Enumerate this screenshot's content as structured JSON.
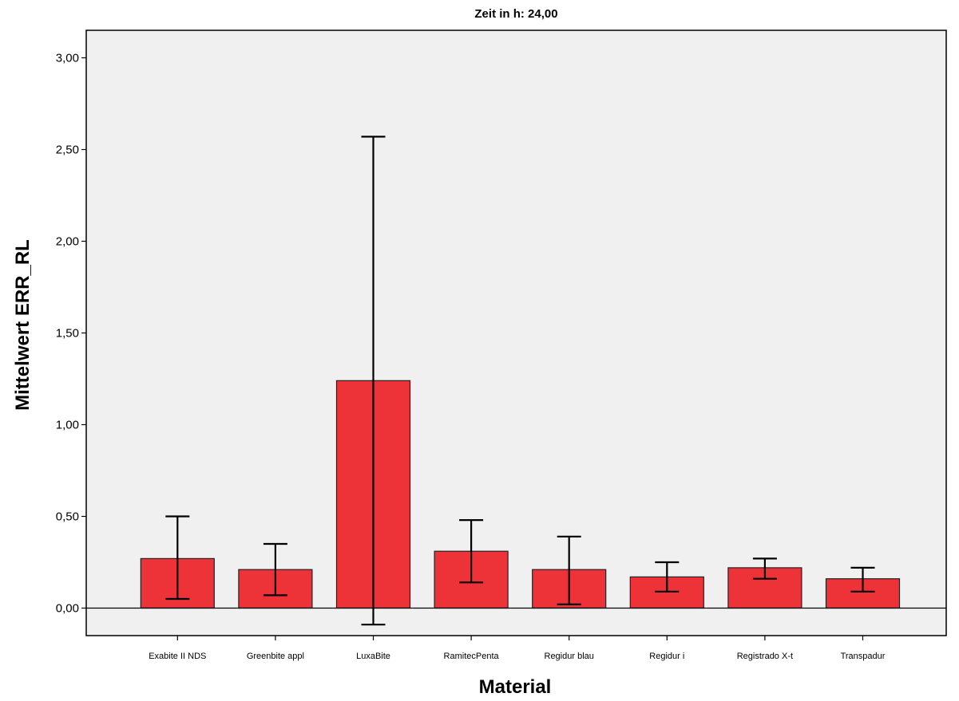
{
  "chart_data": {
    "type": "bar",
    "title": "Zeit in h: 24,00",
    "xlabel": "Material",
    "ylabel": "Mittelwert ERR_RL",
    "ylim": [
      -0.15,
      3.15
    ],
    "yticks": [
      0,
      0.5,
      1,
      1.5,
      2,
      2.5,
      3
    ],
    "ytick_labels": [
      "0,00",
      "0,50",
      "1,00",
      "1,50",
      "2,00",
      "2,50",
      "3,00"
    ],
    "grid": false,
    "bar_color": "#ee3338",
    "background_color": "#f0f0f0",
    "categories": [
      "Exabite II NDS",
      "Greenbite appl",
      "LuxaBite",
      "RamitecPenta",
      "Regidur blau",
      "Regidur i",
      "Registrado X-t",
      "Transpadur"
    ],
    "values": [
      0.27,
      0.21,
      1.24,
      0.31,
      0.21,
      0.17,
      0.22,
      0.16
    ],
    "error_low": [
      0.05,
      0.07,
      -0.09,
      0.14,
      0.02,
      0.09,
      0.16,
      0.09
    ],
    "error_high": [
      0.5,
      0.35,
      2.57,
      0.48,
      0.39,
      0.25,
      0.27,
      0.22
    ]
  }
}
